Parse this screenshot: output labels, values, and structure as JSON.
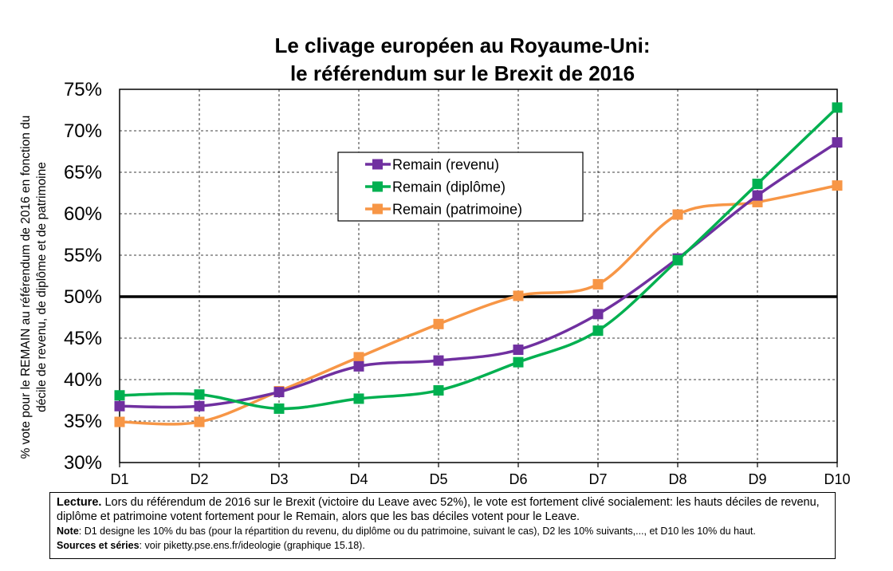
{
  "chart_data": {
    "type": "line",
    "title_line1": "Le clivage européen au Royaume-Uni:",
    "title_line2": "le référendum sur le Brexit de 2016",
    "ylabel_line1": "% vote pour le REMAIN au référendum de 2016 en fonction du",
    "ylabel_line2": "décile de revenu, de diplôme et de patrimoine",
    "xlabel": "",
    "categories": [
      "D1",
      "D2",
      "D3",
      "D4",
      "D5",
      "D6",
      "D7",
      "D8",
      "D9",
      "D10"
    ],
    "yticks": [
      "30%",
      "35%",
      "40%",
      "45%",
      "50%",
      "55%",
      "60%",
      "65%",
      "70%",
      "75%"
    ],
    "ylim": [
      30,
      75
    ],
    "reference_line": 50,
    "grid": true,
    "legend_position": "top-center",
    "series": [
      {
        "name": "Remain (revenu)",
        "color": "#7030a0",
        "values": [
          36.8,
          36.8,
          38.5,
          41.6,
          42.3,
          43.6,
          47.9,
          54.6,
          62.2,
          68.6
        ]
      },
      {
        "name": "Remain (diplôme)",
        "color": "#00b050",
        "values": [
          38.1,
          38.2,
          36.5,
          37.7,
          38.7,
          42.1,
          45.9,
          54.4,
          63.6,
          72.8
        ]
      },
      {
        "name": "Remain (patrimoine)",
        "color": "#f79646",
        "values": [
          34.9,
          34.9,
          38.6,
          42.7,
          46.7,
          50.1,
          51.5,
          59.9,
          61.4,
          63.4
        ]
      }
    ]
  },
  "notes": {
    "lecture_label": "Lecture.",
    "lecture_text": " Lors du référendum de 2016 sur le Brexit (victoire du Leave avec 52%), le vote est fortement clivé socialement: les hauts déciles de revenu, diplôme et patrimoine votent fortement pour le Remain, alors que les bas déciles votent pour le Leave.",
    "note_label": "Note",
    "note_text": ": D1 designe les 10% du bas (pour la répartition du revenu, du diplôme ou du patrimoine, suivant le cas), D2 les 10% suivants,..., et D10 les 10% du haut.",
    "sources_label": "Sources et séries",
    "sources_text": ": voir piketty.pse.ens.fr/ideologie (graphique 15.18)."
  }
}
